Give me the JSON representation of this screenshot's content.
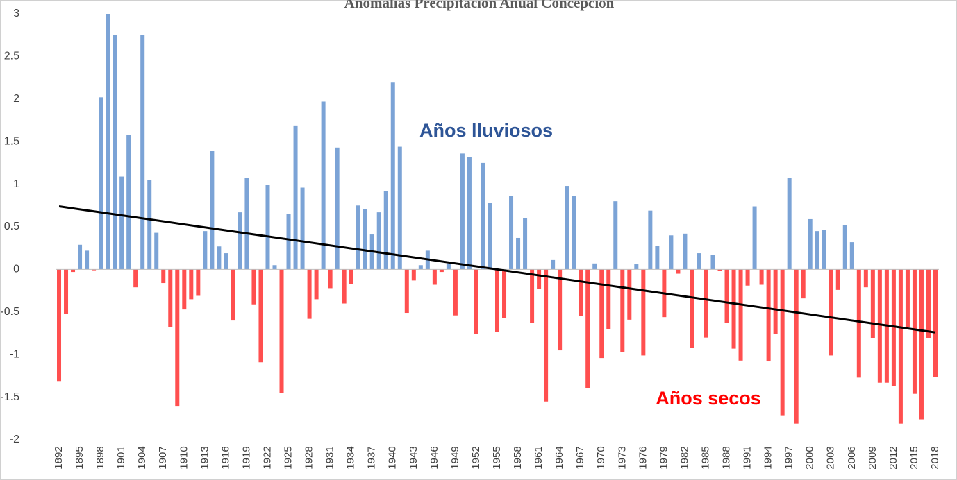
{
  "chart_data": {
    "type": "bar",
    "title": "Anomalías Precipitación Anual Concepción",
    "annotations": [
      {
        "text": "Años lluviosos",
        "color": "#2e5597"
      },
      {
        "text": "Años secos",
        "color": "#ff0000"
      }
    ],
    "categories": [
      "1892",
      null,
      null,
      "1895",
      null,
      null,
      "1898",
      null,
      null,
      "1901",
      null,
      null,
      "1904",
      null,
      null,
      "1907",
      null,
      null,
      "1910",
      null,
      null,
      "1913",
      null,
      null,
      "1916",
      null,
      null,
      "1919",
      null,
      null,
      "1922",
      null,
      null,
      "1925",
      null,
      null,
      "1928",
      null,
      null,
      "1931",
      null,
      null,
      "1934",
      null,
      null,
      "1937",
      null,
      null,
      "1940",
      null,
      null,
      "1943",
      null,
      null,
      "1946",
      null,
      null,
      "1949",
      null,
      null,
      "1952",
      null,
      null,
      "1955",
      null,
      null,
      "1958",
      null,
      null,
      "1961",
      null,
      null,
      "1964",
      null,
      null,
      "1967",
      null,
      null,
      "1970",
      null,
      null,
      "1973",
      null,
      null,
      "1976",
      null,
      null,
      "1979",
      null,
      null,
      "1982",
      null,
      null,
      "1985",
      null,
      null,
      "1988",
      null,
      null,
      "1991",
      null,
      null,
      "1994",
      null,
      null,
      "1997",
      null,
      null,
      "2000",
      null,
      null,
      "2003",
      null,
      null,
      "2006",
      null,
      null,
      "2009",
      null,
      null,
      "2012",
      null,
      null,
      "2015",
      null,
      null,
      "2018"
    ],
    "values": [
      -1.31,
      -0.52,
      -0.03,
      0.29,
      0.22,
      -0.01,
      2.02,
      3.0,
      2.75,
      1.09,
      1.58,
      -0.21,
      2.75,
      1.05,
      0.43,
      -0.16,
      -0.68,
      -1.61,
      -0.47,
      -0.35,
      -0.31,
      0.45,
      1.39,
      0.27,
      0.19,
      -0.6,
      0.67,
      1.07,
      -0.41,
      -1.09,
      0.99,
      0.05,
      -1.45,
      0.65,
      1.69,
      0.96,
      -0.58,
      -0.35,
      1.97,
      -0.22,
      1.43,
      -0.4,
      -0.17,
      0.75,
      0.71,
      0.41,
      0.67,
      0.92,
      2.2,
      1.44,
      -0.51,
      -0.13,
      0.05,
      0.22,
      -0.18,
      -0.03,
      0.07,
      -0.54,
      1.36,
      1.32,
      -0.76,
      1.25,
      0.78,
      -0.73,
      -0.57,
      0.86,
      0.37,
      0.6,
      -0.63,
      -0.23,
      -1.55,
      0.11,
      -0.95,
      0.98,
      0.86,
      -0.55,
      -1.39,
      0.07,
      -1.04,
      -0.7,
      0.8,
      -0.97,
      -0.59,
      0.06,
      -1.01,
      0.69,
      0.28,
      -0.56,
      0.4,
      -0.05,
      0.42,
      -0.92,
      0.19,
      -0.8,
      0.17,
      -0.02,
      -0.63,
      -0.93,
      -1.07,
      -0.19,
      0.74,
      -0.18,
      -1.08,
      -0.76,
      -1.72,
      1.07,
      -1.81,
      -0.34,
      0.59,
      0.45,
      0.46,
      -1.01,
      -0.24,
      0.52,
      0.32,
      -1.27,
      -0.21,
      -0.81,
      -1.33,
      -1.33,
      -1.37,
      -1.81,
      -0.68,
      -1.46,
      -1.76,
      -0.81,
      -1.26
    ],
    "positive_color": "#7ba3d6",
    "negative_color": "#ff4f4f",
    "trendline": {
      "start": 0.74,
      "end": -0.74,
      "color": "#000000"
    },
    "ylim": [
      -2,
      3
    ],
    "yticks": [
      3,
      2.5,
      2,
      1.5,
      1,
      0.5,
      0,
      -0.5,
      -1,
      -1.5,
      -2
    ],
    "grid": false
  }
}
